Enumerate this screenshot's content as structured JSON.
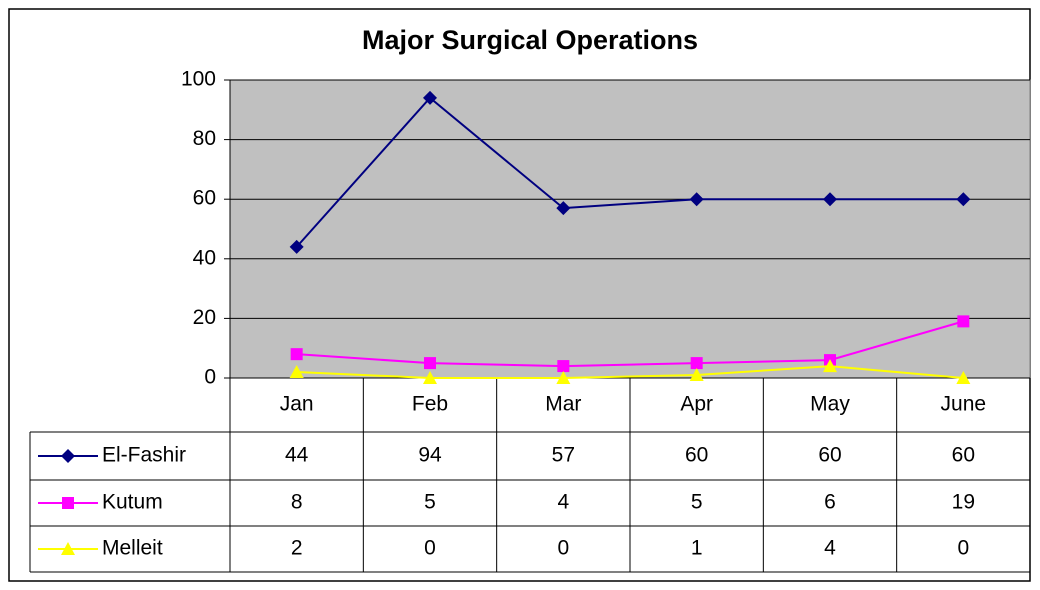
{
  "chart_data": {
    "type": "line",
    "title": "Major Surgical Operations",
    "categories": [
      "Jan",
      "Feb",
      "Mar",
      "Apr",
      "May",
      "June"
    ],
    "series": [
      {
        "name": "El-Fashir",
        "color": "#000080",
        "marker": "diamond",
        "values": [
          44,
          94,
          57,
          60,
          60,
          60
        ]
      },
      {
        "name": "Kutum",
        "color": "#ff00ff",
        "marker": "square",
        "values": [
          8,
          5,
          4,
          5,
          6,
          19
        ]
      },
      {
        "name": "Melleit",
        "color": "#ffff00",
        "marker": "triangle",
        "values": [
          2,
          0,
          0,
          1,
          4,
          0
        ]
      }
    ],
    "ylim": [
      0,
      100
    ],
    "yticks": [
      0,
      20,
      40,
      60,
      80,
      100
    ],
    "grid": true,
    "data_table": true
  }
}
